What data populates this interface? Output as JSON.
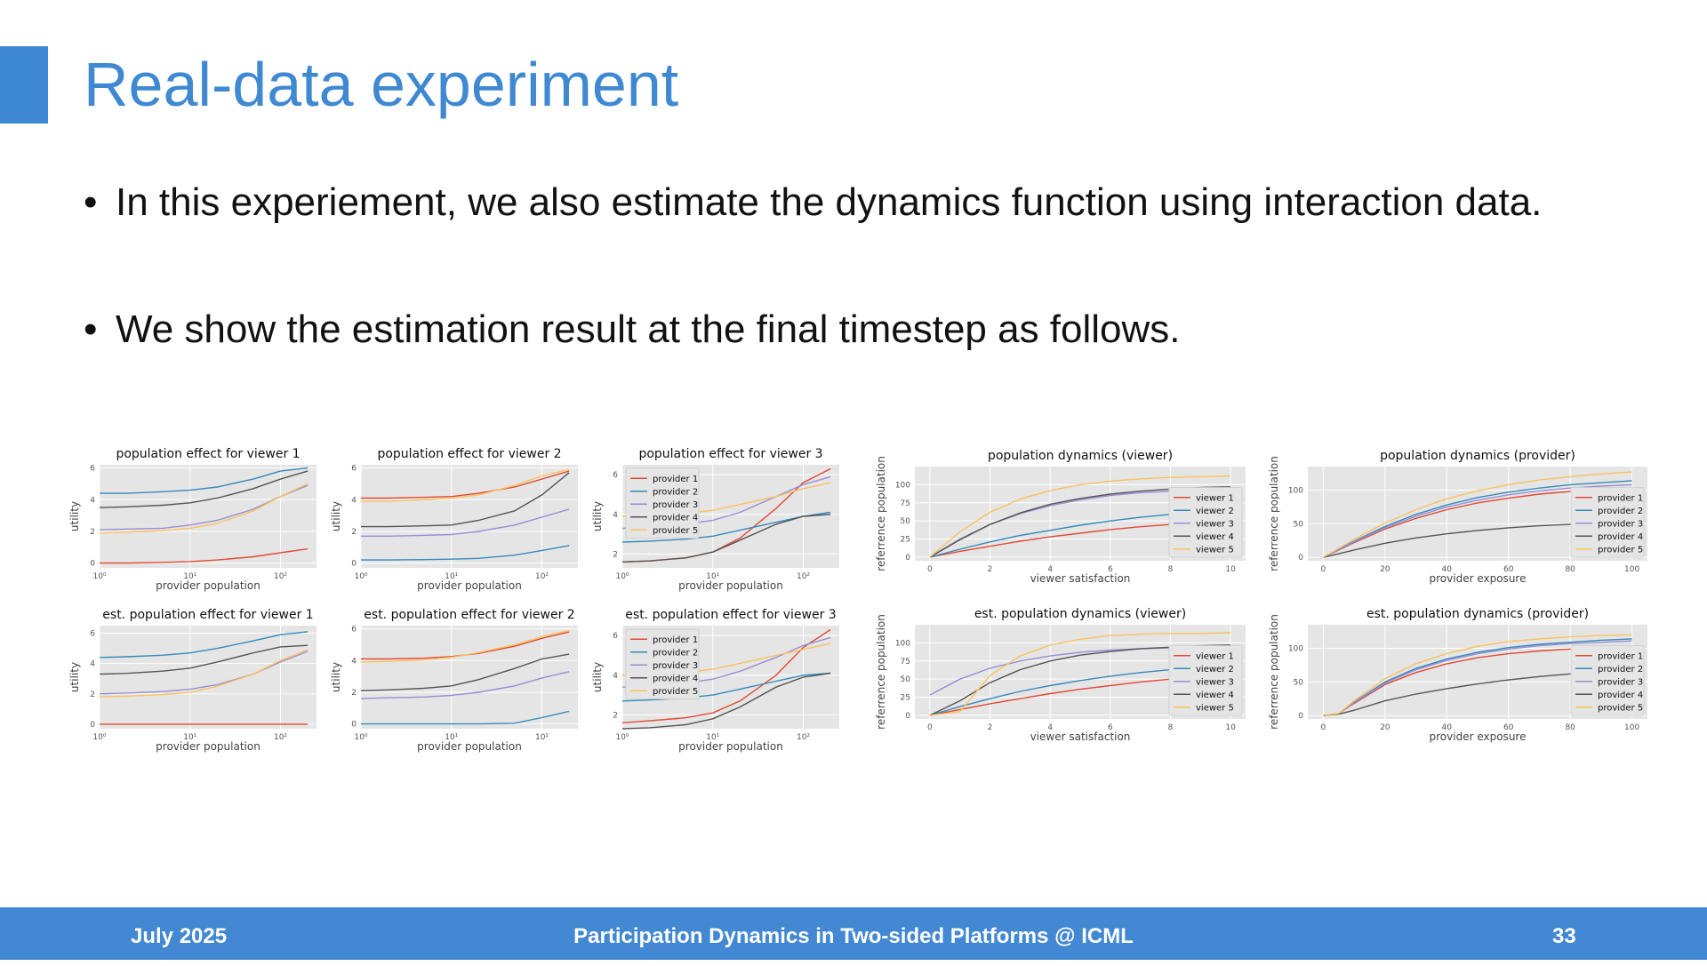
{
  "slide": {
    "title": "Real-data experiment",
    "bullets": [
      "In this experiement, we also estimate the dynamics function using interaction data.",
      "We show the estimation result at the final timestep as follows."
    ],
    "footer": {
      "date": "July 2025",
      "center": "Participation Dynamics in Two-sided Platforms @ ICML",
      "page": "33"
    }
  },
  "colors": {
    "accent": "#3f88d2",
    "footer_bg": "#4388d3",
    "plot_bg": "#e5e5e5",
    "series": [
      "#e24a33",
      "#348abd",
      "#988ed5",
      "#555555",
      "#fbc15e"
    ]
  },
  "chart_data": [
    {
      "type": "line",
      "title": "population effect for viewer 1",
      "xlabel": "provider population",
      "ylabel": "utility",
      "xscale": "log",
      "xlim": [
        1,
        250
      ],
      "ylim": [
        -0.3,
        6.2
      ],
      "xticks": [
        1,
        10,
        100
      ],
      "xticklabels": [
        "10⁰",
        "10¹",
        "10²"
      ],
      "yticks": [
        0,
        2,
        4,
        6
      ],
      "legend": null,
      "x": [
        1,
        2,
        5,
        10,
        20,
        50,
        100,
        200
      ],
      "series": [
        {
          "values": [
            0.0,
            0.0,
            0.05,
            0.1,
            0.2,
            0.4,
            0.65,
            0.9
          ]
        },
        {
          "values": [
            4.4,
            4.4,
            4.5,
            4.6,
            4.8,
            5.3,
            5.8,
            6.0
          ]
        },
        {
          "values": [
            2.1,
            2.15,
            2.2,
            2.4,
            2.7,
            3.4,
            4.2,
            4.9
          ]
        },
        {
          "values": [
            3.5,
            3.55,
            3.65,
            3.8,
            4.1,
            4.7,
            5.3,
            5.8
          ]
        },
        {
          "values": [
            1.9,
            1.95,
            2.05,
            2.2,
            2.5,
            3.3,
            4.2,
            5.0
          ]
        }
      ]
    },
    {
      "type": "line",
      "title": "population effect for viewer 2",
      "xlabel": "provider population",
      "ylabel": "utility",
      "xscale": "log",
      "xlim": [
        1,
        250
      ],
      "ylim": [
        -0.3,
        6.2
      ],
      "xticks": [
        1,
        10,
        100
      ],
      "xticklabels": [
        "10⁰",
        "10¹",
        "10²"
      ],
      "yticks": [
        0,
        2,
        4,
        6
      ],
      "legend": null,
      "x": [
        1,
        2,
        5,
        10,
        20,
        50,
        100,
        200
      ],
      "series": [
        {
          "values": [
            4.1,
            4.1,
            4.15,
            4.2,
            4.4,
            4.8,
            5.3,
            5.8
          ]
        },
        {
          "values": [
            0.2,
            0.2,
            0.22,
            0.25,
            0.3,
            0.5,
            0.8,
            1.1
          ]
        },
        {
          "values": [
            1.7,
            1.7,
            1.75,
            1.8,
            2.0,
            2.4,
            2.9,
            3.4
          ]
        },
        {
          "values": [
            2.3,
            2.3,
            2.35,
            2.4,
            2.7,
            3.3,
            4.3,
            5.7
          ]
        },
        {
          "values": [
            3.9,
            3.9,
            4.0,
            4.1,
            4.3,
            4.9,
            5.5,
            5.9
          ]
        }
      ]
    },
    {
      "type": "line",
      "title": "population effect for viewer 3",
      "xlabel": "provider population",
      "ylabel": "utility",
      "xscale": "log",
      "xlim": [
        1,
        250
      ],
      "ylim": [
        1.3,
        6.5
      ],
      "xticks": [
        1,
        10,
        100
      ],
      "xticklabels": [
        "10⁰",
        "10¹",
        "10²"
      ],
      "yticks": [
        2,
        4,
        6
      ],
      "legend": "top-left",
      "x": [
        1,
        2,
        5,
        10,
        20,
        50,
        100,
        200
      ],
      "series": [
        {
          "name": "provider 1",
          "values": [
            1.6,
            1.65,
            1.8,
            2.1,
            2.8,
            4.3,
            5.6,
            6.3
          ]
        },
        {
          "name": "provider 2",
          "values": [
            2.6,
            2.65,
            2.75,
            2.9,
            3.2,
            3.6,
            3.9,
            4.1
          ]
        },
        {
          "name": "provider 3",
          "values": [
            3.3,
            3.35,
            3.5,
            3.7,
            4.1,
            4.9,
            5.5,
            5.9
          ]
        },
        {
          "name": "provider 4",
          "values": [
            1.6,
            1.65,
            1.8,
            2.1,
            2.7,
            3.5,
            3.9,
            4.0
          ]
        },
        {
          "name": "provider 5",
          "values": [
            3.9,
            3.95,
            4.05,
            4.2,
            4.5,
            4.9,
            5.3,
            5.6
          ]
        }
      ]
    },
    {
      "type": "line",
      "title": "population dynamics (viewer)",
      "xlabel": "viewer satisfaction",
      "ylabel": "referrence population",
      "xscale": "linear",
      "xlim": [
        -0.5,
        10.5
      ],
      "ylim": [
        -5,
        125
      ],
      "xticks": [
        0,
        2,
        4,
        6,
        8,
        10
      ],
      "xticklabels": [
        "0",
        "2",
        "4",
        "6",
        "8",
        "10"
      ],
      "yticks": [
        0,
        25,
        50,
        75,
        100
      ],
      "legend": "bottom-right",
      "x": [
        0,
        1,
        2,
        3,
        4,
        5,
        6,
        7,
        8,
        9,
        10
      ],
      "series": [
        {
          "name": "viewer 1",
          "values": [
            0,
            8,
            15,
            22,
            28,
            33,
            38,
            42,
            45,
            48,
            50
          ]
        },
        {
          "name": "viewer 2",
          "values": [
            0,
            11,
            21,
            30,
            37,
            44,
            50,
            55,
            59,
            62,
            65
          ]
        },
        {
          "name": "viewer 3",
          "values": [
            0,
            25,
            45,
            60,
            71,
            79,
            85,
            89,
            91,
            93,
            94
          ]
        },
        {
          "name": "viewer 4",
          "values": [
            0,
            24,
            45,
            61,
            73,
            81,
            87,
            91,
            94,
            96,
            97
          ]
        },
        {
          "name": "viewer 5",
          "values": [
            0,
            35,
            62,
            80,
            92,
            100,
            105,
            108,
            110,
            111,
            112
          ]
        }
      ]
    },
    {
      "type": "line",
      "title": "population dynamics (provider)",
      "xlabel": "provider exposure",
      "ylabel": "referrence population",
      "xscale": "linear",
      "xlim": [
        -5,
        105
      ],
      "ylim": [
        -5,
        135
      ],
      "xticks": [
        0,
        20,
        40,
        60,
        80,
        100
      ],
      "xticklabels": [
        "0",
        "20",
        "40",
        "60",
        "80",
        "100"
      ],
      "yticks": [
        0,
        50,
        100
      ],
      "legend": "bottom-right",
      "x": [
        0,
        10,
        20,
        30,
        40,
        50,
        60,
        70,
        80,
        90,
        100
      ],
      "series": [
        {
          "name": "provider 1",
          "values": [
            0,
            22,
            42,
            58,
            71,
            81,
            88,
            94,
            98,
            101,
            103
          ]
        },
        {
          "name": "provider 2",
          "values": [
            0,
            24,
            46,
            64,
            78,
            89,
            97,
            103,
            108,
            111,
            114
          ]
        },
        {
          "name": "provider 3",
          "values": [
            0,
            23,
            44,
            61,
            75,
            85,
            93,
            99,
            103,
            106,
            108
          ]
        },
        {
          "name": "provider 4",
          "values": [
            0,
            11,
            21,
            29,
            35,
            40,
            44,
            47,
            49,
            50,
            51
          ]
        },
        {
          "name": "provider 5",
          "values": [
            0,
            27,
            51,
            71,
            87,
            99,
            108,
            115,
            120,
            124,
            127
          ]
        }
      ]
    },
    {
      "type": "line",
      "title": "est. population effect for viewer 1",
      "xlabel": "provider population",
      "ylabel": "utility",
      "xscale": "log",
      "xlim": [
        1,
        250
      ],
      "ylim": [
        -0.3,
        6.5
      ],
      "xticks": [
        1,
        10,
        100
      ],
      "xticklabels": [
        "10⁰",
        "10¹",
        "10²"
      ],
      "yticks": [
        0,
        2,
        4,
        6
      ],
      "legend": null,
      "x": [
        1,
        2,
        5,
        10,
        20,
        50,
        100,
        200
      ],
      "series": [
        {
          "values": [
            0,
            0,
            0,
            0,
            0,
            0,
            0,
            0
          ]
        },
        {
          "values": [
            4.4,
            4.45,
            4.55,
            4.7,
            5.0,
            5.5,
            5.9,
            6.1
          ]
        },
        {
          "values": [
            2.0,
            2.05,
            2.15,
            2.3,
            2.6,
            3.3,
            4.1,
            4.8
          ]
        },
        {
          "values": [
            3.3,
            3.35,
            3.5,
            3.7,
            4.1,
            4.7,
            5.1,
            5.2
          ]
        },
        {
          "values": [
            1.8,
            1.85,
            1.95,
            2.1,
            2.5,
            3.3,
            4.2,
            4.9
          ]
        }
      ]
    },
    {
      "type": "line",
      "title": "est. population effect for viewer 2",
      "xlabel": "provider population",
      "ylabel": "utility",
      "xscale": "log",
      "xlim": [
        1,
        250
      ],
      "ylim": [
        -0.3,
        6.2
      ],
      "xticks": [
        1,
        10,
        100
      ],
      "xticklabels": [
        "10⁰",
        "10¹",
        "10²"
      ],
      "yticks": [
        0,
        2,
        4,
        6
      ],
      "legend": null,
      "x": [
        1,
        2,
        5,
        10,
        20,
        50,
        100,
        200
      ],
      "series": [
        {
          "values": [
            4.1,
            4.1,
            4.15,
            4.25,
            4.45,
            4.9,
            5.4,
            5.8
          ]
        },
        {
          "values": [
            0,
            0,
            0,
            0,
            0,
            0.05,
            0.4,
            0.8
          ]
        },
        {
          "values": [
            1.6,
            1.65,
            1.7,
            1.8,
            2.0,
            2.4,
            2.9,
            3.3
          ]
        },
        {
          "values": [
            2.1,
            2.15,
            2.25,
            2.4,
            2.8,
            3.5,
            4.1,
            4.4
          ]
        },
        {
          "values": [
            3.9,
            3.95,
            4.05,
            4.2,
            4.5,
            5.0,
            5.5,
            5.9
          ]
        }
      ]
    },
    {
      "type": "line",
      "title": "est. population effect for viewer 3",
      "xlabel": "provider population",
      "ylabel": "utility",
      "xscale": "log",
      "xlim": [
        1,
        250
      ],
      "ylim": [
        1.3,
        6.5
      ],
      "xticks": [
        1,
        10,
        100
      ],
      "xticklabels": [
        "10⁰",
        "10¹",
        "10²"
      ],
      "yticks": [
        2,
        4,
        6
      ],
      "legend": "top-left",
      "x": [
        1,
        2,
        5,
        10,
        20,
        50,
        100,
        200
      ],
      "series": [
        {
          "name": "provider 1",
          "values": [
            1.6,
            1.7,
            1.85,
            2.1,
            2.7,
            4.0,
            5.4,
            6.3
          ]
        },
        {
          "name": "provider 2",
          "values": [
            2.7,
            2.75,
            2.85,
            3.0,
            3.3,
            3.7,
            4.0,
            4.1
          ]
        },
        {
          "name": "provider 3",
          "values": [
            3.4,
            3.45,
            3.6,
            3.8,
            4.2,
            4.9,
            5.5,
            5.9
          ]
        },
        {
          "name": "provider 4",
          "values": [
            1.3,
            1.35,
            1.5,
            1.8,
            2.4,
            3.4,
            3.9,
            4.1
          ]
        },
        {
          "name": "provider 5",
          "values": [
            4.0,
            4.05,
            4.15,
            4.3,
            4.6,
            5.0,
            5.3,
            5.6
          ]
        }
      ]
    },
    {
      "type": "line",
      "title": "est. population dynamics (viewer)",
      "xlabel": "viewer satisfaction",
      "ylabel": "referrence population",
      "xscale": "linear",
      "xlim": [
        -0.5,
        10.5
      ],
      "ylim": [
        -5,
        125
      ],
      "xticks": [
        0,
        2,
        4,
        6,
        8,
        10
      ],
      "xticklabels": [
        "0",
        "2",
        "4",
        "6",
        "8",
        "10"
      ],
      "yticks": [
        0,
        25,
        50,
        75,
        100
      ],
      "legend": "bottom-right",
      "x": [
        0,
        1,
        2,
        3,
        4,
        5,
        6,
        7,
        8,
        9,
        10
      ],
      "series": [
        {
          "name": "viewer 1",
          "values": [
            0,
            8,
            16,
            23,
            30,
            36,
            41,
            46,
            50,
            54,
            57
          ]
        },
        {
          "name": "viewer 2",
          "values": [
            0,
            12,
            23,
            33,
            41,
            48,
            54,
            59,
            63,
            66,
            68
          ]
        },
        {
          "name": "viewer 3",
          "values": [
            28,
            50,
            65,
            75,
            82,
            87,
            90,
            92,
            93,
            94,
            95
          ]
        },
        {
          "name": "viewer 4",
          "values": [
            0,
            20,
            45,
            63,
            75,
            83,
            88,
            92,
            94,
            96,
            97
          ]
        },
        {
          "name": "viewer 5",
          "values": [
            0,
            5,
            55,
            82,
            97,
            105,
            110,
            112,
            113,
            113,
            114
          ]
        }
      ]
    },
    {
      "type": "line",
      "title": "est. population dynamics (provider)",
      "xlabel": "provider exposure",
      "ylabel": "referrence population",
      "xscale": "linear",
      "xlim": [
        -5,
        105
      ],
      "ylim": [
        -5,
        135
      ],
      "xticks": [
        0,
        20,
        40,
        60,
        80,
        100
      ],
      "xticklabels": [
        "0",
        "20",
        "40",
        "60",
        "80",
        "100"
      ],
      "yticks": [
        0,
        50,
        100
      ],
      "legend": "bottom-right",
      "x": [
        0,
        5,
        10,
        20,
        30,
        40,
        50,
        60,
        70,
        80,
        90,
        100
      ],
      "series": [
        {
          "name": "provider 1",
          "values": [
            0,
            3,
            18,
            46,
            64,
            77,
            86,
            92,
            96,
            99,
            101,
            103
          ]
        },
        {
          "name": "provider 2",
          "values": [
            0,
            3,
            20,
            50,
            70,
            84,
            94,
            101,
            106,
            109,
            112,
            114
          ]
        },
        {
          "name": "provider 3",
          "values": [
            0,
            3,
            19,
            48,
            68,
            82,
            92,
            99,
            104,
            107,
            109,
            111
          ]
        },
        {
          "name": "provider 4",
          "values": [
            0,
            2,
            8,
            22,
            32,
            40,
            47,
            53,
            58,
            62,
            65,
            67
          ]
        },
        {
          "name": "provider 5",
          "values": [
            0,
            3,
            22,
            55,
            77,
            92,
            103,
            110,
            114,
            117,
            119,
            120
          ]
        }
      ]
    }
  ]
}
